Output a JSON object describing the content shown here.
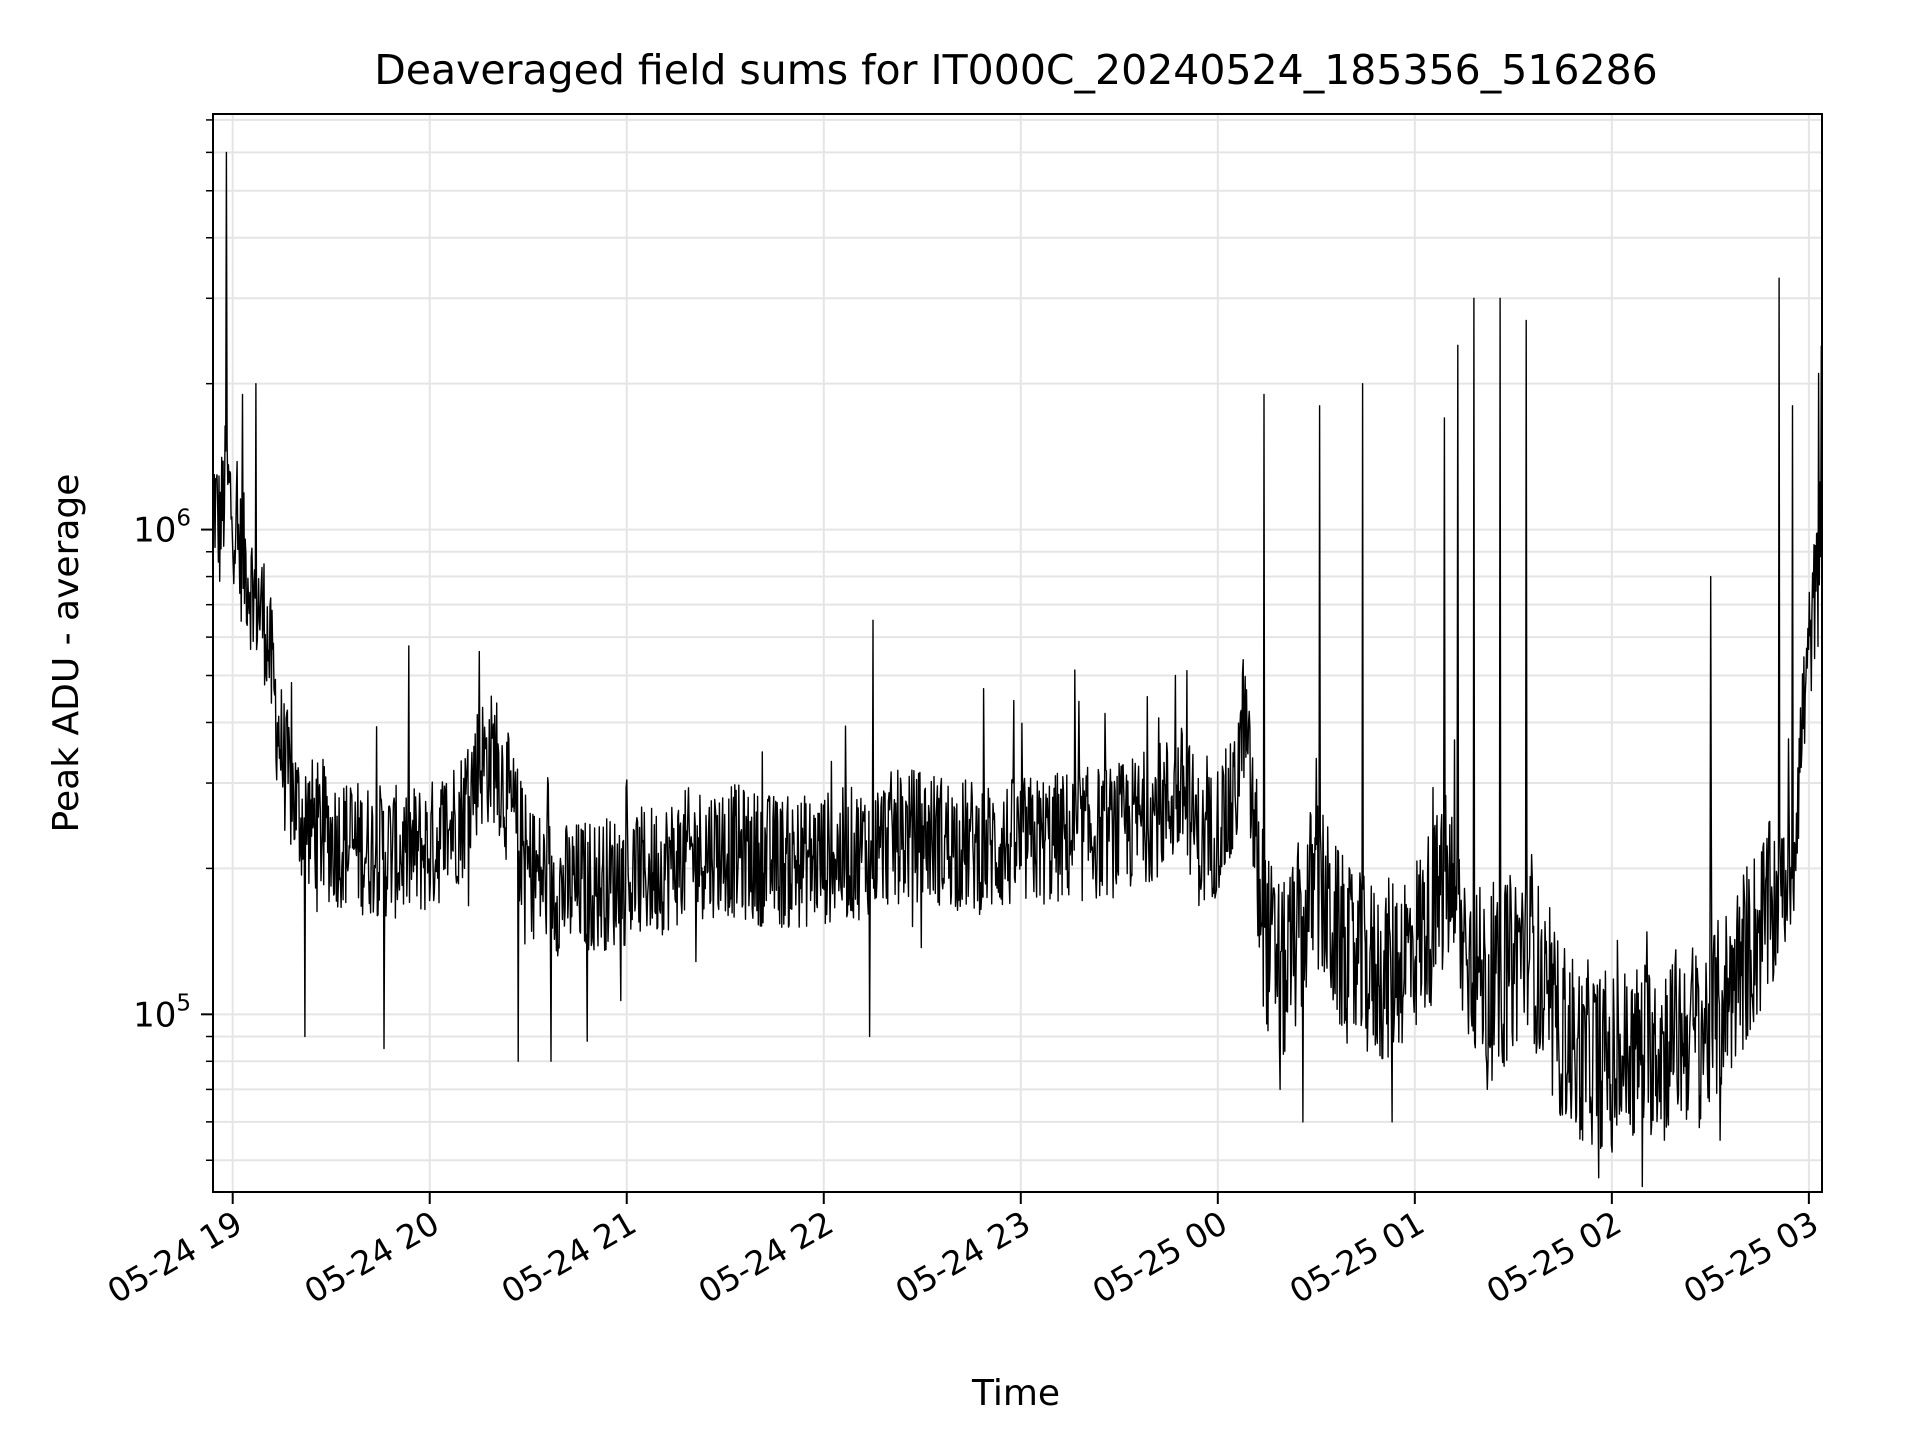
{
  "chart_data": {
    "type": "line",
    "title": "Deaveraged field sums for IT000C_20240524_185356_516286",
    "xlabel": "Time",
    "ylabel": "Peak ADU - average",
    "y_scale": "log",
    "x_range": [
      "2024-05-24 18:54",
      "2024-05-25 03:04"
    ],
    "ylim": [
      43000,
      7200000
    ],
    "grid": true,
    "line_color": "#000000",
    "grid_color": "#e5e5e5",
    "x_ticks": [
      {
        "t": "2024-05-24 19:00",
        "label": "05-24 19"
      },
      {
        "t": "2024-05-24 20:00",
        "label": "05-24 20"
      },
      {
        "t": "2024-05-24 21:00",
        "label": "05-24 21"
      },
      {
        "t": "2024-05-24 22:00",
        "label": "05-24 22"
      },
      {
        "t": "2024-05-24 23:00",
        "label": "05-24 23"
      },
      {
        "t": "2024-05-25 00:00",
        "label": "05-25 00"
      },
      {
        "t": "2024-05-25 01:00",
        "label": "05-25 01"
      },
      {
        "t": "2024-05-25 02:00",
        "label": "05-25 02"
      },
      {
        "t": "2024-05-25 03:00",
        "label": "05-25 03"
      }
    ],
    "y_ticks": [
      {
        "value": 100000,
        "base": "10",
        "exp": "5"
      },
      {
        "value": 1000000,
        "base": "10",
        "exp": "6"
      }
    ],
    "series": [
      {
        "points": [
          [
            "2024-05-24 18:54",
            1200000
          ],
          [
            "2024-05-24 18:56",
            1000000
          ],
          [
            "2024-05-24 18:58",
            1250000
          ],
          [
            "2024-05-24 19:00",
            1100000
          ],
          [
            "2024-05-24 19:02",
            900000
          ],
          [
            "2024-05-24 19:04",
            850000
          ],
          [
            "2024-05-24 19:06",
            750000
          ],
          [
            "2024-05-24 19:08",
            700000
          ],
          [
            "2024-05-24 19:10",
            650000
          ],
          [
            "2024-05-24 19:12",
            500000
          ],
          [
            "2024-05-24 19:14",
            380000
          ],
          [
            "2024-05-24 19:16",
            320000
          ],
          [
            "2024-05-24 19:20",
            260000
          ],
          [
            "2024-05-24 19:30",
            230000
          ],
          [
            "2024-05-24 19:40",
            220000
          ],
          [
            "2024-05-24 19:50",
            215000
          ],
          [
            "2024-05-24 20:00",
            220000
          ],
          [
            "2024-05-24 20:10",
            260000
          ],
          [
            "2024-05-24 20:15",
            330000
          ],
          [
            "2024-05-24 20:20",
            340000
          ],
          [
            "2024-05-24 20:25",
            260000
          ],
          [
            "2024-05-24 20:30",
            200000
          ],
          [
            "2024-05-24 20:40",
            180000
          ],
          [
            "2024-05-24 20:50",
            185000
          ],
          [
            "2024-05-24 21:00",
            190000
          ],
          [
            "2024-05-24 21:10",
            200000
          ],
          [
            "2024-05-24 21:20",
            215000
          ],
          [
            "2024-05-24 21:30",
            220000
          ],
          [
            "2024-05-24 21:40",
            210000
          ],
          [
            "2024-05-24 21:50",
            205000
          ],
          [
            "2024-05-24 22:00",
            210000
          ],
          [
            "2024-05-24 22:10",
            215000
          ],
          [
            "2024-05-24 22:20",
            230000
          ],
          [
            "2024-05-24 22:30",
            235000
          ],
          [
            "2024-05-24 22:40",
            225000
          ],
          [
            "2024-05-24 22:50",
            220000
          ],
          [
            "2024-05-24 23:00",
            225000
          ],
          [
            "2024-05-24 23:10",
            230000
          ],
          [
            "2024-05-24 23:20",
            235000
          ],
          [
            "2024-05-24 23:30",
            240000
          ],
          [
            "2024-05-24 23:40",
            260000
          ],
          [
            "2024-05-24 23:50",
            290000
          ],
          [
            "2024-05-24 23:55",
            220000
          ],
          [
            "2024-05-25 00:05",
            270000
          ],
          [
            "2024-05-25 00:08",
            420000
          ],
          [
            "2024-05-25 00:12",
            200000
          ],
          [
            "2024-05-25 00:15",
            140000
          ],
          [
            "2024-05-25 00:20",
            120000
          ],
          [
            "2024-05-25 00:25",
            150000
          ],
          [
            "2024-05-25 00:30",
            190000
          ],
          [
            "2024-05-25 00:35",
            150000
          ],
          [
            "2024-05-25 00:40",
            130000
          ],
          [
            "2024-05-25 00:50",
            120000
          ],
          [
            "2024-05-25 01:00",
            140000
          ],
          [
            "2024-05-25 01:05",
            160000
          ],
          [
            "2024-05-25 01:10",
            190000
          ],
          [
            "2024-05-25 01:15",
            140000
          ],
          [
            "2024-05-25 01:20",
            120000
          ],
          [
            "2024-05-25 01:25",
            110000
          ],
          [
            "2024-05-25 01:30",
            130000
          ],
          [
            "2024-05-25 01:35",
            150000
          ],
          [
            "2024-05-25 01:40",
            100000
          ],
          [
            "2024-05-25 01:50",
            85000
          ],
          [
            "2024-05-25 02:00",
            80000
          ],
          [
            "2024-05-25 02:10",
            85000
          ],
          [
            "2024-05-25 02:20",
            90000
          ],
          [
            "2024-05-25 02:30",
            95000
          ],
          [
            "2024-05-25 02:35",
            110000
          ],
          [
            "2024-05-25 02:40",
            130000
          ],
          [
            "2024-05-25 02:45",
            150000
          ],
          [
            "2024-05-25 02:50",
            170000
          ],
          [
            "2024-05-25 02:55",
            200000
          ],
          [
            "2024-05-25 02:58",
            400000
          ],
          [
            "2024-05-25 03:01",
            650000
          ],
          [
            "2024-05-25 03:04",
            900000
          ]
        ],
        "spikes": [
          [
            "2024-05-24 18:58",
            6000000
          ],
          [
            "2024-05-24 19:03",
            1900000
          ],
          [
            "2024-05-24 19:07",
            2000000
          ],
          [
            "2024-05-24 20:15",
            560000
          ],
          [
            "2024-05-24 22:15",
            650000
          ],
          [
            "2024-05-24 23:47",
            500000
          ],
          [
            "2024-05-25 00:14",
            1900000
          ],
          [
            "2024-05-25 00:31",
            1800000
          ],
          [
            "2024-05-25 00:44",
            2000000
          ],
          [
            "2024-05-25 01:09",
            1700000
          ],
          [
            "2024-05-25 01:13",
            2400000
          ],
          [
            "2024-05-25 01:18",
            3000000
          ],
          [
            "2024-05-25 01:26",
            3000000
          ],
          [
            "2024-05-25 01:34",
            2700000
          ],
          [
            "2024-05-25 02:30",
            800000
          ],
          [
            "2024-05-25 02:51",
            3300000
          ],
          [
            "2024-05-25 02:55",
            1800000
          ],
          [
            "2024-05-25 03:03",
            2100000
          ]
        ],
        "dips": [
          [
            "2024-05-24 19:22",
            90000
          ],
          [
            "2024-05-24 19:46",
            85000
          ],
          [
            "2024-05-24 20:27",
            80000
          ],
          [
            "2024-05-24 20:37",
            80000
          ],
          [
            "2024-05-24 20:48",
            88000
          ],
          [
            "2024-05-24 22:14",
            90000
          ],
          [
            "2024-05-25 00:19",
            70000
          ],
          [
            "2024-05-25 00:26",
            60000
          ],
          [
            "2024-05-25 00:53",
            60000
          ],
          [
            "2024-05-25 01:22",
            70000
          ],
          [
            "2024-05-25 01:49",
            60000
          ],
          [
            "2024-05-25 01:51",
            55000
          ],
          [
            "2024-05-25 01:56",
            46000
          ],
          [
            "2024-05-25 02:00",
            52000
          ],
          [
            "2024-05-25 02:16",
            55000
          ],
          [
            "2024-05-25 02:33",
            55000
          ]
        ]
      }
    ]
  }
}
